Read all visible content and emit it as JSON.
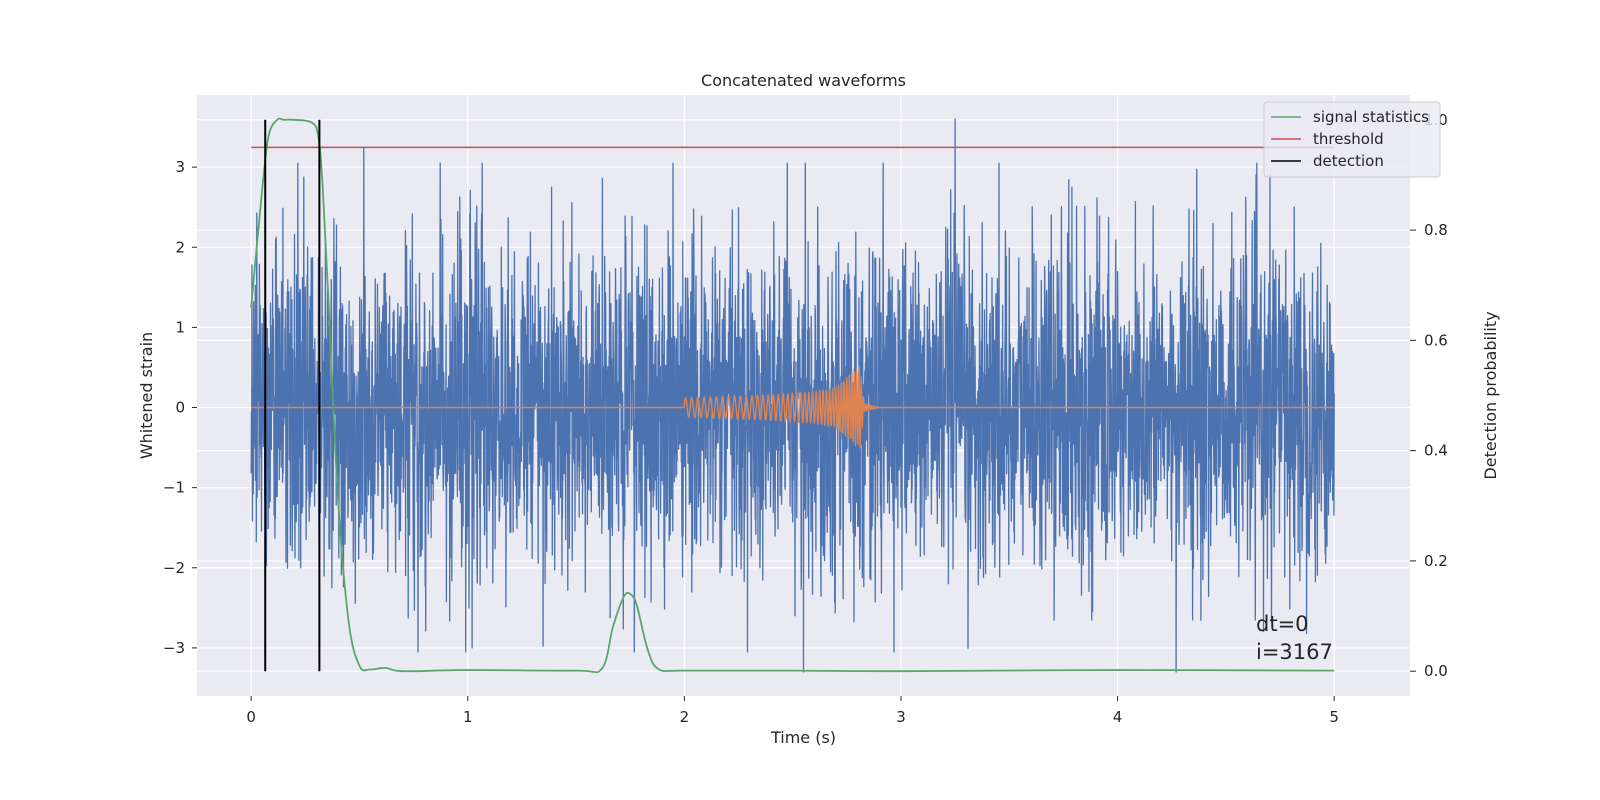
{
  "chart_data": {
    "type": "line",
    "title": "Concatenated waveforms",
    "xlabel": "Time (s)",
    "ylabel": "Whitened strain",
    "y2label": "Detection probability",
    "xlim": [
      -0.25,
      5.35
    ],
    "ylim": [
      -3.6,
      3.9
    ],
    "y2lim": [
      -0.045,
      1.045
    ],
    "xticks": [
      0,
      1,
      2,
      3,
      4,
      5
    ],
    "xtick_labels": [
      "0",
      "1",
      "2",
      "3",
      "4",
      "5"
    ],
    "yticks": [
      -3,
      -2,
      -1,
      0,
      1,
      2,
      3
    ],
    "ytick_labels": [
      "−3",
      "−2",
      "−1",
      "0",
      "1",
      "2",
      "3"
    ],
    "y2ticks": [
      0.0,
      0.2,
      0.4,
      0.6,
      0.8,
      1.0
    ],
    "y2tick_labels": [
      "0.0",
      "0.2",
      "0.4",
      "0.6",
      "0.8",
      "1.0"
    ],
    "grid": true,
    "legend_position": "top-right",
    "annotations": [
      "dt=0",
      "i=3167"
    ],
    "series": [
      {
        "name": "",
        "axis": "left",
        "color": "#4c72b0",
        "kind": "noise",
        "x_range": [
          0,
          5
        ],
        "typical_amplitude": 1.0,
        "notable_spikes": [
          [
            0.52,
            3.25
          ],
          [
            3.25,
            3.6
          ],
          [
            2.55,
            -3.3
          ],
          [
            4.27,
            -3.3
          ],
          [
            1.02,
            -3.0
          ]
        ]
      },
      {
        "name": "",
        "axis": "left",
        "color": "#dd8452",
        "kind": "chirp",
        "x": [
          0,
          2.0,
          2.2,
          2.4,
          2.6,
          2.7,
          2.8,
          2.81,
          2.83,
          2.9,
          5.0
        ],
        "envelope": [
          0,
          0.12,
          0.14,
          0.16,
          0.2,
          0.25,
          0.5,
          0.55,
          0.05,
          0,
          0
        ]
      },
      {
        "name": "signal statistics",
        "axis": "right",
        "color": "#55a868",
        "x": [
          0,
          0.05,
          0.08,
          0.12,
          0.15,
          0.2,
          0.28,
          0.31,
          0.33,
          0.36,
          0.4,
          0.45,
          0.5,
          0.55,
          0.62,
          0.7,
          1.0,
          1.5,
          1.62,
          1.67,
          1.72,
          1.75,
          1.78,
          1.83,
          1.88,
          2.0,
          2.5,
          3.0,
          4.0,
          5.0
        ],
        "values": [
          0.66,
          0.87,
          0.97,
          1.0,
          1.0,
          1.0,
          0.995,
          0.97,
          0.88,
          0.65,
          0.32,
          0.09,
          0.01,
          0.003,
          0.006,
          0.0,
          0.002,
          0.001,
          0.005,
          0.08,
          0.135,
          0.14,
          0.12,
          0.04,
          0.004,
          0.001,
          0.001,
          0.0,
          0.002,
          0.001
        ]
      },
      {
        "name": "threshold",
        "axis": "right",
        "color": "#c44e52",
        "x": [
          0,
          5
        ],
        "values": [
          0.95,
          0.95
        ]
      },
      {
        "name": "detection",
        "axis": "right",
        "color": "#000000",
        "kind": "vlines",
        "x": [
          0.065,
          0.315
        ],
        "range": [
          0.0,
          1.0
        ]
      }
    ]
  }
}
